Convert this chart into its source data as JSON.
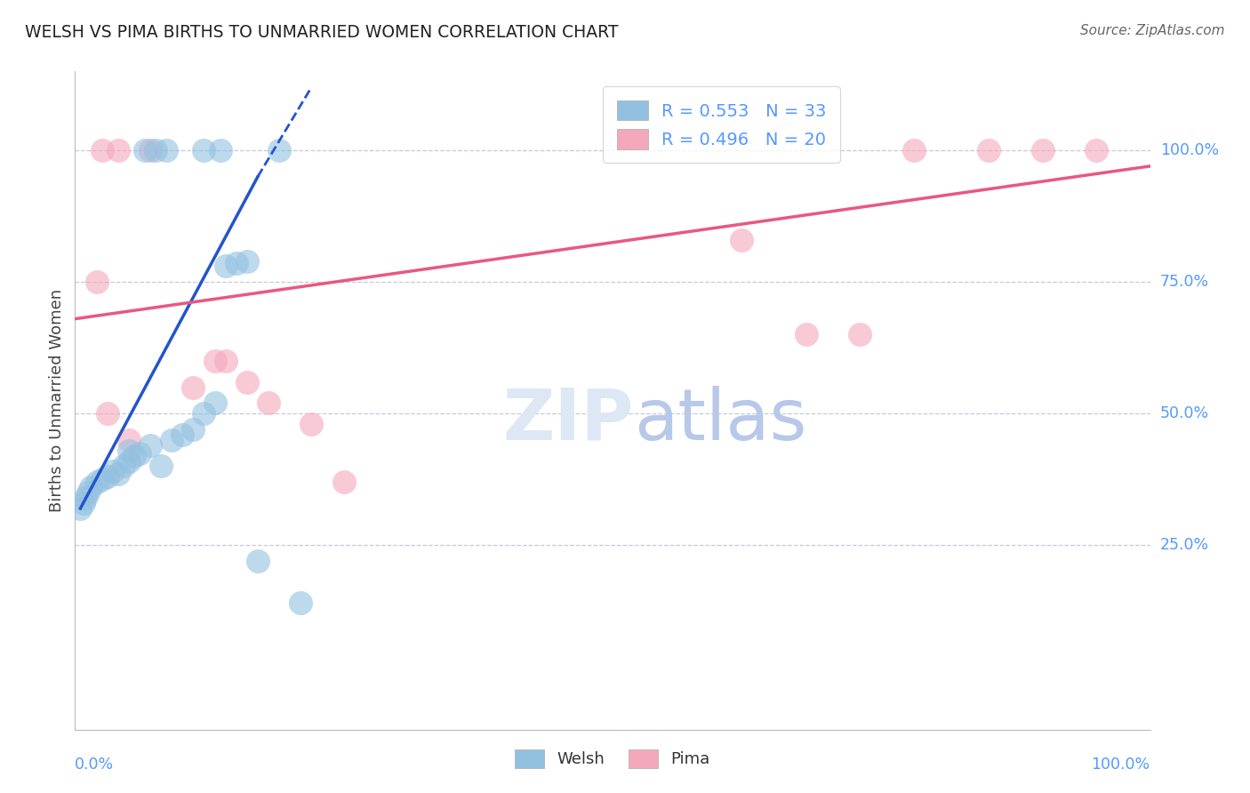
{
  "title": "WELSH VS PIMA BIRTHS TO UNMARRIED WOMEN CORRELATION CHART",
  "source": "Source: ZipAtlas.com",
  "ylabel": "Births to Unmarried Women",
  "welsh_R": 0.553,
  "welsh_N": 33,
  "pima_R": 0.496,
  "pima_N": 20,
  "welsh_color": "#92c0e0",
  "pima_color": "#f4a8bc",
  "welsh_line_color": "#2255cc",
  "pima_line_color": "#e85880",
  "background_color": "#ffffff",
  "grid_color": "#c8c8d8",
  "label_color": "#5599ff",
  "legend_text_color": "#222222",
  "source_color": "#666666",
  "title_color": "#222222",
  "ytick_labels": [
    "100.0%",
    "75.0%",
    "50.0%",
    "25.0%"
  ],
  "ytick_values": [
    100,
    75,
    50,
    25
  ],
  "xlim": [
    0,
    100
  ],
  "ylim": [
    -10,
    115
  ],
  "welsh_x": [
    0.5,
    0.8,
    1.0,
    1.2,
    1.5,
    2.0,
    2.5,
    3.0,
    3.5,
    4.0,
    4.5,
    5.0,
    5.5,
    6.0,
    7.0,
    8.0,
    9.0,
    10.0,
    11.0,
    12.0,
    13.0,
    14.0,
    15.0,
    16.0,
    17.0,
    5.0,
    6.5,
    7.5,
    8.5,
    12.0,
    13.5,
    19.0,
    21.0
  ],
  "welsh_y": [
    32.0,
    33.0,
    34.0,
    35.0,
    36.0,
    37.0,
    37.5,
    38.0,
    39.0,
    38.5,
    40.0,
    41.0,
    42.0,
    42.5,
    44.0,
    40.0,
    45.0,
    46.0,
    47.0,
    50.0,
    52.0,
    78.0,
    78.5,
    79.0,
    22.0,
    43.0,
    100.0,
    100.0,
    100.0,
    100.0,
    100.0,
    100.0,
    14.0
  ],
  "pima_x": [
    2.0,
    3.0,
    5.0,
    11.0,
    13.0,
    14.0,
    16.0,
    18.0,
    22.0,
    25.0,
    62.0,
    68.0,
    73.0,
    78.0,
    2.5,
    4.0,
    7.0,
    85.0,
    90.0,
    95.0
  ],
  "pima_y": [
    75.0,
    50.0,
    45.0,
    55.0,
    60.0,
    60.0,
    56.0,
    52.0,
    48.0,
    37.0,
    83.0,
    65.0,
    65.0,
    100.0,
    100.0,
    100.0,
    100.0,
    100.0,
    100.0,
    100.0
  ],
  "welsh_line_x1": 0.5,
  "welsh_line_y1": 32.0,
  "welsh_line_x2": 17.0,
  "welsh_line_y2": 95.0,
  "welsh_dash_x1": 17.0,
  "welsh_dash_y1": 95.0,
  "welsh_dash_x2": 22.0,
  "welsh_dash_y2": 112.0,
  "pima_line_x1": 0,
  "pima_line_y1": 68.0,
  "pima_line_x2": 100,
  "pima_line_y2": 97.0
}
